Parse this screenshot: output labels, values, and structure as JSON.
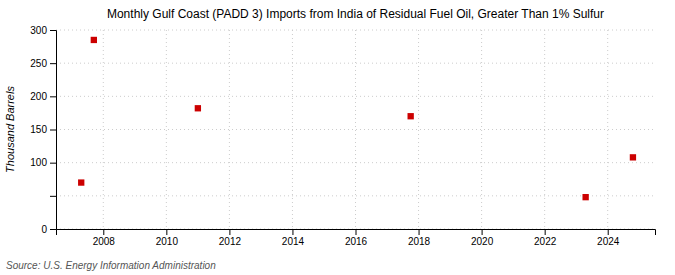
{
  "chart_data": {
    "type": "scatter",
    "title": "Monthly Gulf Coast (PADD 3) Imports from India of Residual Fuel Oil, Greater Than 1% Sulfur",
    "ylabel": "Thousand Barrels",
    "source": "Source: U.S. Energy Information Administration",
    "x": [
      2007.3,
      2007.7,
      2011.0,
      2017.75,
      2023.3,
      2024.8
    ],
    "values": [
      70,
      285,
      182,
      170,
      48,
      108
    ],
    "color": "#cc0000",
    "marker": "square",
    "xlim": [
      2006.5,
      2025.5
    ],
    "xticks": [
      2008,
      2010,
      2012,
      2014,
      2016,
      2018,
      2020,
      2022,
      2024
    ],
    "ylim": [
      0,
      300
    ],
    "yticks": [
      0,
      {
        "value": 50,
        "label": ""
      },
      100,
      150,
      200,
      250,
      300
    ],
    "grid": true
  }
}
